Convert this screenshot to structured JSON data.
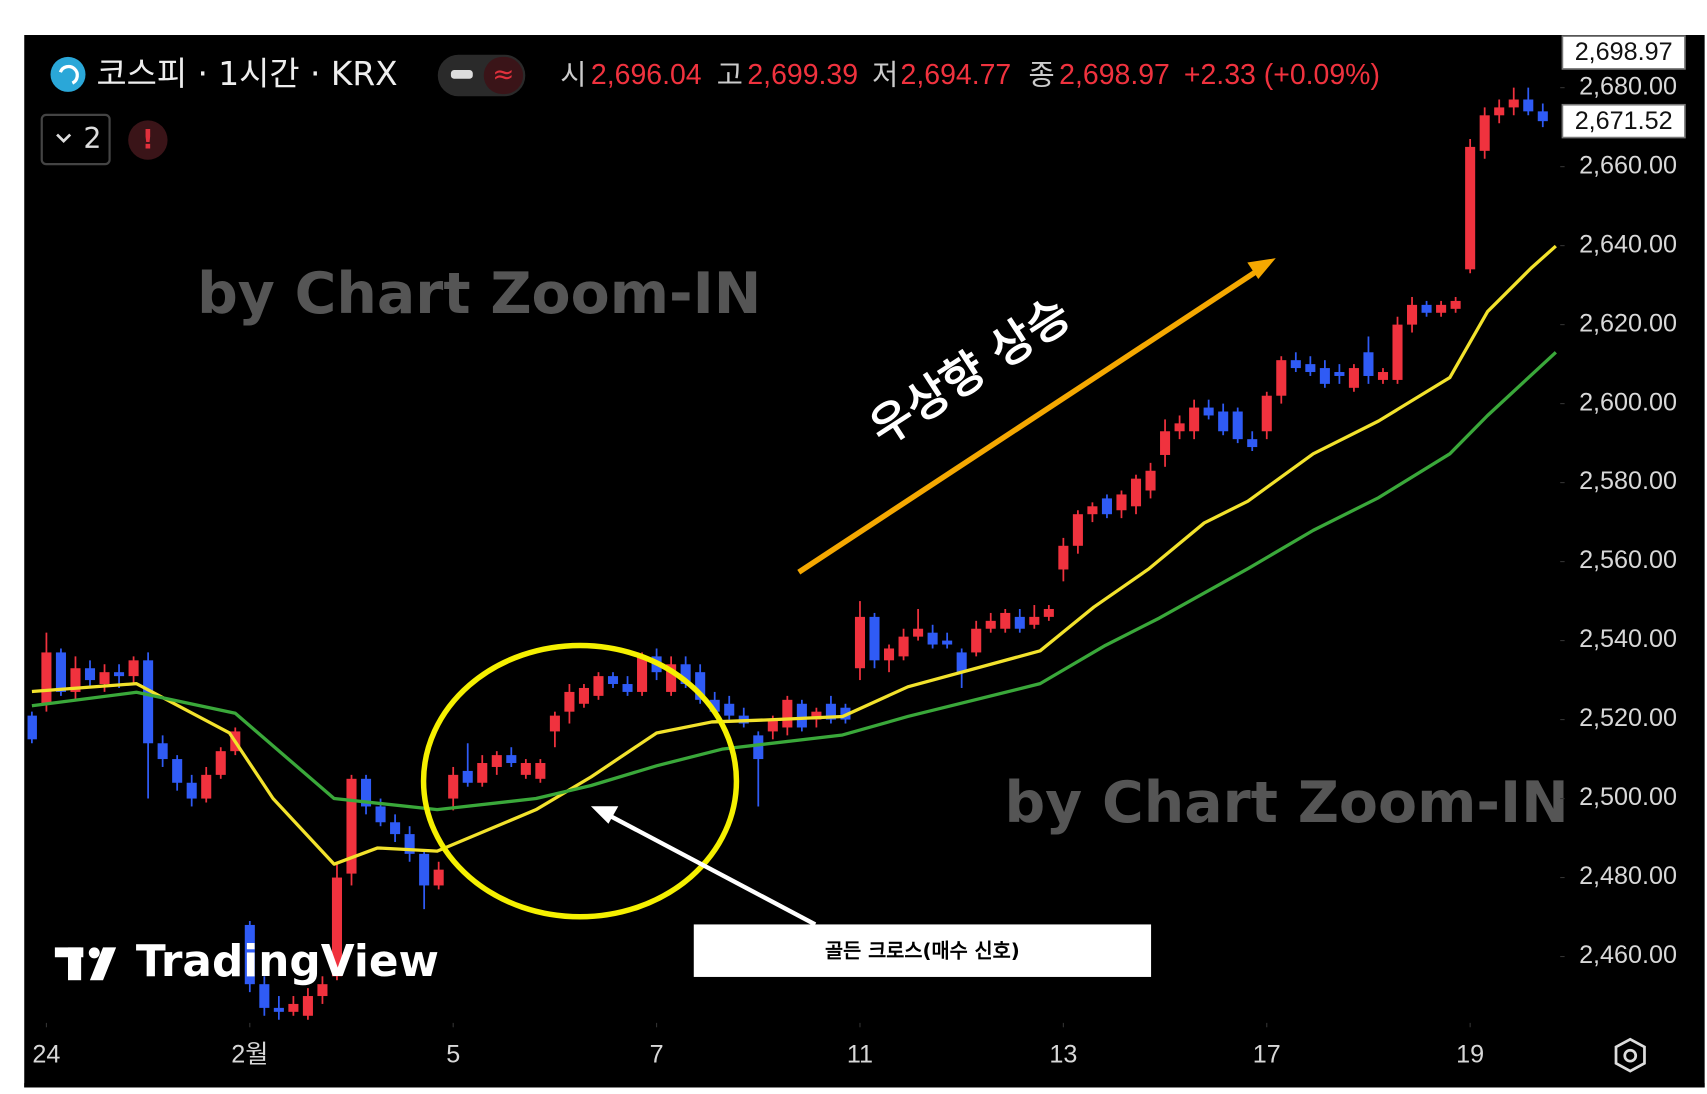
{
  "header": {
    "symbol": "코스피 · 1시간 · KRX",
    "open_label": "시",
    "open": "2,696.04",
    "high_label": "고",
    "high": "2,699.39",
    "low_label": "저",
    "low": "2,694.77",
    "close_label": "종",
    "close": "2,698.97",
    "change": "+2.33 (+0.09%)",
    "indicator_count": "2",
    "alert": "!"
  },
  "watermarks": [
    "by Chart Zoom-IN",
    "by Chart Zoom-IN"
  ],
  "logo": "TradingView",
  "annotations": {
    "trend": "우상향 상승",
    "cross": "골든 크로스(매수 신호)"
  },
  "chart_data": {
    "type": "candlestick",
    "up_color": "#f0323e",
    "down_color": "#2f5bf5",
    "xlim": [
      -0.3,
      105.2
    ],
    "xticks": [
      {
        "value": 1,
        "label": "24"
      },
      {
        "value": 15,
        "label": "2월"
      },
      {
        "value": 29,
        "label": "5"
      },
      {
        "value": 43,
        "label": "7"
      },
      {
        "value": 57,
        "label": "11"
      },
      {
        "value": 71,
        "label": "13"
      },
      {
        "value": 85,
        "label": "17"
      },
      {
        "value": 99,
        "label": "19"
      }
    ],
    "ylim": [
      2443.2,
      2692.5
    ],
    "yticks": [
      {
        "value": 2460,
        "label": "2,460.00"
      },
      {
        "value": 2480,
        "label": "2,480.00"
      },
      {
        "value": 2500,
        "label": "2,500.00"
      },
      {
        "value": 2520,
        "label": "2,520.00"
      },
      {
        "value": 2540,
        "label": "2,540.00"
      },
      {
        "value": 2560,
        "label": "2,560.00"
      },
      {
        "value": 2580,
        "label": "2,580.00"
      },
      {
        "value": 2600,
        "label": "2,600.00"
      },
      {
        "value": 2620,
        "label": "2,620.00"
      },
      {
        "value": 2640,
        "label": "2,640.00"
      },
      {
        "value": 2660,
        "label": "2,660.00"
      },
      {
        "value": 2680,
        "label": "2,680.00"
      }
    ],
    "grid": false,
    "price_tags": [
      {
        "value": 2698.97,
        "label": "2,698.97"
      },
      {
        "value": 2671.52,
        "label": "2,671.52"
      }
    ],
    "open": [
      2521,
      2524,
      2537,
      2527,
      2533,
      2529,
      2532,
      2531,
      2535,
      2514,
      2510,
      2504,
      2500,
      2506,
      2512,
      2468,
      2453,
      2447,
      2446,
      2445,
      2450,
      2455,
      2481,
      2505,
      2498,
      2494,
      2491,
      2486,
      2478,
      2500,
      2507,
      2504,
      2508,
      2511,
      2506,
      2505,
      2517,
      2522,
      2524,
      2526,
      2531,
      2529,
      2527,
      2536,
      2527,
      2534,
      2532,
      2525,
      2524,
      2521,
      2516,
      2517,
      2518,
      2524,
      2520,
      2524,
      2523,
      2533,
      2546,
      2535,
      2536,
      2541,
      2542,
      2540,
      2537,
      2537,
      2543,
      2543,
      2546,
      2544,
      2546,
      2558,
      2564,
      2572,
      2576,
      2573,
      2574,
      2578,
      2587,
      2593,
      2593,
      2599,
      2598,
      2598,
      2591,
      2593,
      2602,
      2611,
      2610,
      2609,
      2608,
      2604,
      2613,
      2606,
      2606,
      2620,
      2625,
      2623,
      2624,
      2634,
      2664,
      2673,
      2675,
      2677,
      2674
    ],
    "high": [
      2522,
      2542,
      2538,
      2536,
      2535,
      2534,
      2534,
      2536,
      2537,
      2516,
      2511,
      2506,
      2508,
      2513,
      2518,
      2469,
      2455,
      2450,
      2450,
      2452,
      2455,
      2484,
      2506,
      2506,
      2500,
      2496,
      2493,
      2487,
      2484,
      2508,
      2514,
      2511,
      2512,
      2513,
      2510,
      2510,
      2522,
      2529,
      2529,
      2532,
      2532,
      2531,
      2537,
      2538,
      2536,
      2536,
      2534,
      2527,
      2526,
      2523,
      2517,
      2521,
      2526,
      2525,
      2523,
      2526,
      2524,
      2550,
      2547,
      2539,
      2543,
      2548,
      2544,
      2542,
      2538,
      2545,
      2547,
      2548,
      2548,
      2549,
      2549,
      2566,
      2573,
      2575,
      2577,
      2578,
      2582,
      2585,
      2596,
      2597,
      2601,
      2601,
      2600,
      2599,
      2593,
      2603,
      2612,
      2613,
      2612,
      2611,
      2610,
      2610,
      2617,
      2609,
      2622,
      2627,
      2626,
      2626,
      2627,
      2667,
      2675,
      2677,
      2680,
      2680,
      2676
    ],
    "low": [
      2514,
      2522,
      2526,
      2525,
      2528,
      2527,
      2528,
      2529,
      2500,
      2508,
      2502,
      2498,
      2499,
      2505,
      2511,
      2451,
      2445,
      2444,
      2445,
      2444,
      2448,
      2454,
      2478,
      2496,
      2493,
      2489,
      2484,
      2472,
      2477,
      2497,
      2503,
      2503,
      2506,
      2508,
      2505,
      2504,
      2513,
      2519,
      2523,
      2525,
      2528,
      2526,
      2526,
      2530,
      2526,
      2528,
      2524,
      2521,
      2520,
      2518,
      2498,
      2515,
      2516,
      2517,
      2518,
      2519,
      2519,
      2530,
      2533,
      2532,
      2535,
      2540,
      2538,
      2538,
      2528,
      2536,
      2542,
      2542,
      2542,
      2543,
      2545,
      2555,
      2562,
      2570,
      2571,
      2571,
      2572,
      2576,
      2584,
      2591,
      2591,
      2596,
      2592,
      2590,
      2588,
      2591,
      2600,
      2608,
      2607,
      2604,
      2605,
      2603,
      2605,
      2605,
      2605,
      2618,
      2622,
      2622,
      2623,
      2633,
      2662,
      2671,
      2673,
      2673,
      2670
    ],
    "close": [
      2515,
      2537,
      2527,
      2533,
      2530,
      2532,
      2531,
      2535,
      2514,
      2510,
      2504,
      2500,
      2506,
      2512,
      2517,
      2453,
      2447,
      2446,
      2448,
      2450,
      2453,
      2480,
      2505,
      2498,
      2494,
      2491,
      2486,
      2478,
      2482,
      2506,
      2504,
      2509,
      2511,
      2509,
      2509,
      2509,
      2521,
      2527,
      2528,
      2531,
      2529,
      2527,
      2536,
      2532,
      2534,
      2529,
      2525,
      2522,
      2521,
      2519,
      2510,
      2520,
      2525,
      2518,
      2522,
      2520,
      2520,
      2546,
      2535,
      2538,
      2541,
      2543,
      2539,
      2539,
      2532,
      2543,
      2545,
      2547,
      2543,
      2546,
      2548,
      2564,
      2572,
      2574,
      2572,
      2577,
      2581,
      2583,
      2593,
      2595,
      2599,
      2597,
      2593,
      2591,
      2589,
      2602,
      2611,
      2609,
      2608,
      2605,
      2607,
      2609,
      2607,
      2608,
      2620,
      2625,
      2623,
      2625,
      2626,
      2665,
      2673,
      2675,
      2677,
      2674,
      2671.52
    ],
    "lines": [
      {
        "color": "#f2e22c",
        "x": [
          0,
          7.2,
          13.6,
          16.6,
          20.8,
          23.8,
          27.9,
          34.7,
          38.5,
          43,
          46.8,
          50.5,
          55.8,
          60.3,
          69.4,
          73.1,
          76.9,
          80.7,
          83.7,
          88.2,
          92.7,
          97.6,
          100.2,
          103.2,
          104.9
        ],
        "values": [
          2527.1,
          2529.1,
          2516.6,
          2500,
          2483.4,
          2487.5,
          2486.7,
          2497.2,
          2505.5,
          2516.6,
          2519.4,
          2519.9,
          2520.8,
          2528.3,
          2537.4,
          2548.5,
          2558.2,
          2569.8,
          2575.3,
          2587.3,
          2595.6,
          2606.6,
          2623.3,
          2634.3,
          2639.9
        ]
      },
      {
        "color": "#3aa83a",
        "x": [
          0,
          7.2,
          14,
          20.8,
          27.9,
          34.7,
          38.5,
          43,
          47.5,
          55.8,
          60.3,
          69.4,
          73.9,
          77.6,
          83.7,
          88.2,
          92.7,
          97.6,
          100.2,
          104.9
        ],
        "values": [
          2523.5,
          2526.9,
          2521.6,
          2500,
          2497.2,
          2500,
          2503.3,
          2508.3,
          2512.5,
          2516.1,
          2520.8,
          2529.1,
          2538.8,
          2545.7,
          2558.2,
          2567.9,
          2576.2,
          2587.3,
          2597,
          2613
        ]
      }
    ]
  }
}
